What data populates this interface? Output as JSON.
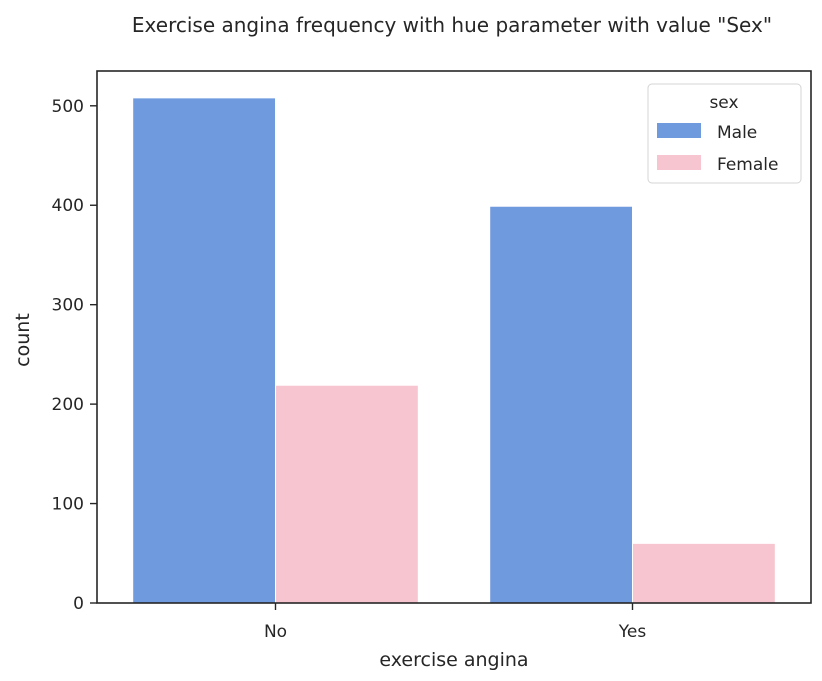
{
  "chart_data": {
    "type": "bar",
    "title": "Exercise angina frequency with hue parameter with value \"Sex\"",
    "xlabel": "exercise angina",
    "ylabel": "count",
    "categories": [
      "No",
      "Yes"
    ],
    "series": [
      {
        "name": "Male",
        "values": [
          508,
          399
        ],
        "color": "#6f9ade"
      },
      {
        "name": "Female",
        "values": [
          219,
          60
        ],
        "color": "#f7c5cf"
      }
    ],
    "ylim": [
      0,
      535
    ],
    "yticks": [
      0,
      100,
      200,
      300,
      400,
      500
    ],
    "grid": false,
    "legend": {
      "title": "sex",
      "position": "top-right"
    }
  }
}
